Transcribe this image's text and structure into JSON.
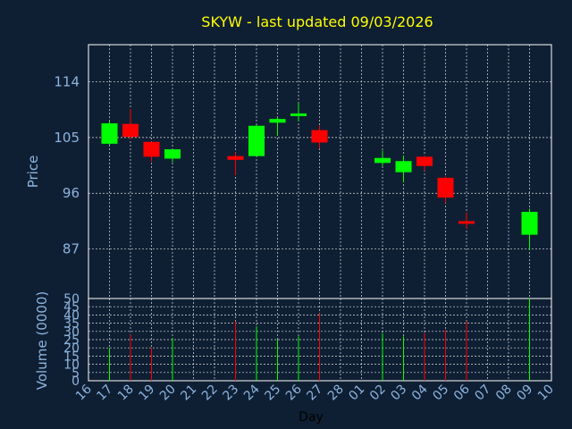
{
  "chart_data": {
    "type": "candlestick",
    "title": "SKYW - last updated 09/03/2026",
    "xlabel": "Day",
    "price_panel": {
      "ylabel": "Price",
      "ylim": [
        79,
        120
      ],
      "yticks": [
        87,
        96,
        105,
        114
      ],
      "grid": true
    },
    "volume_panel": {
      "ylabel": "Volume (0000)",
      "ylim": [
        0,
        50
      ],
      "yticks": [
        0,
        5,
        10,
        15,
        20,
        25,
        30,
        35,
        40,
        45,
        50
      ],
      "grid": true
    },
    "x_tick_labels": [
      "16",
      "17",
      "18",
      "19",
      "20",
      "21",
      "22",
      "23",
      "24",
      "25",
      "26",
      "27",
      "28",
      "01",
      "02",
      "03",
      "04",
      "05",
      "06",
      "07",
      "08",
      "09",
      "10"
    ],
    "candles": [
      {
        "day": "17",
        "open": 104.0,
        "high": 107.7,
        "low": 103.8,
        "close": 107.3,
        "volume": 20
      },
      {
        "day": "18",
        "open": 107.2,
        "high": 109.6,
        "low": 104.7,
        "close": 105.1,
        "volume": 28
      },
      {
        "day": "19",
        "open": 104.3,
        "high": 104.3,
        "low": 101.1,
        "close": 101.9,
        "volume": 20
      },
      {
        "day": "20",
        "open": 101.6,
        "high": 103.1,
        "low": 101.0,
        "close": 103.1,
        "volume": 26
      },
      {
        "day": "23",
        "open": 102.0,
        "high": 102.6,
        "low": 98.9,
        "close": 101.4,
        "volume": 36
      },
      {
        "day": "24",
        "open": 102.0,
        "high": 107.1,
        "low": 101.9,
        "close": 106.9,
        "volume": 33
      },
      {
        "day": "25",
        "open": 107.4,
        "high": 108.3,
        "low": 105.3,
        "close": 108.0,
        "volume": 25
      },
      {
        "day": "26",
        "open": 108.7,
        "high": 110.6,
        "low": 107.6,
        "close": 108.9,
        "volume": 27
      },
      {
        "day": "27",
        "open": 106.2,
        "high": 106.9,
        "low": 103.2,
        "close": 104.2,
        "volume": 41
      },
      {
        "day": "02",
        "open": 100.9,
        "high": 102.9,
        "low": 100.4,
        "close": 101.7,
        "volume": 29
      },
      {
        "day": "03",
        "open": 99.4,
        "high": 102.1,
        "low": 97.8,
        "close": 101.2,
        "volume": 27
      },
      {
        "day": "04",
        "open": 101.9,
        "high": 102.1,
        "low": 99.6,
        "close": 100.4,
        "volume": 29
      },
      {
        "day": "05",
        "open": 98.5,
        "high": 98.7,
        "low": 94.4,
        "close": 95.3,
        "volume": 31
      },
      {
        "day": "06",
        "open": 91.5,
        "high": 92.9,
        "low": 90.3,
        "close": 91.3,
        "volume": 36
      },
      {
        "day": "09",
        "open": 89.3,
        "high": 93.5,
        "low": 86.9,
        "close": 93.0,
        "volume": 50
      }
    ],
    "up_color": "#00ff00",
    "down_color": "#ff0000"
  },
  "colors": {
    "background": "#0f1f33",
    "axis": "#ffffff",
    "grid": "#ffffff",
    "title": "#ffff00",
    "tick": "#8cb4e0"
  }
}
